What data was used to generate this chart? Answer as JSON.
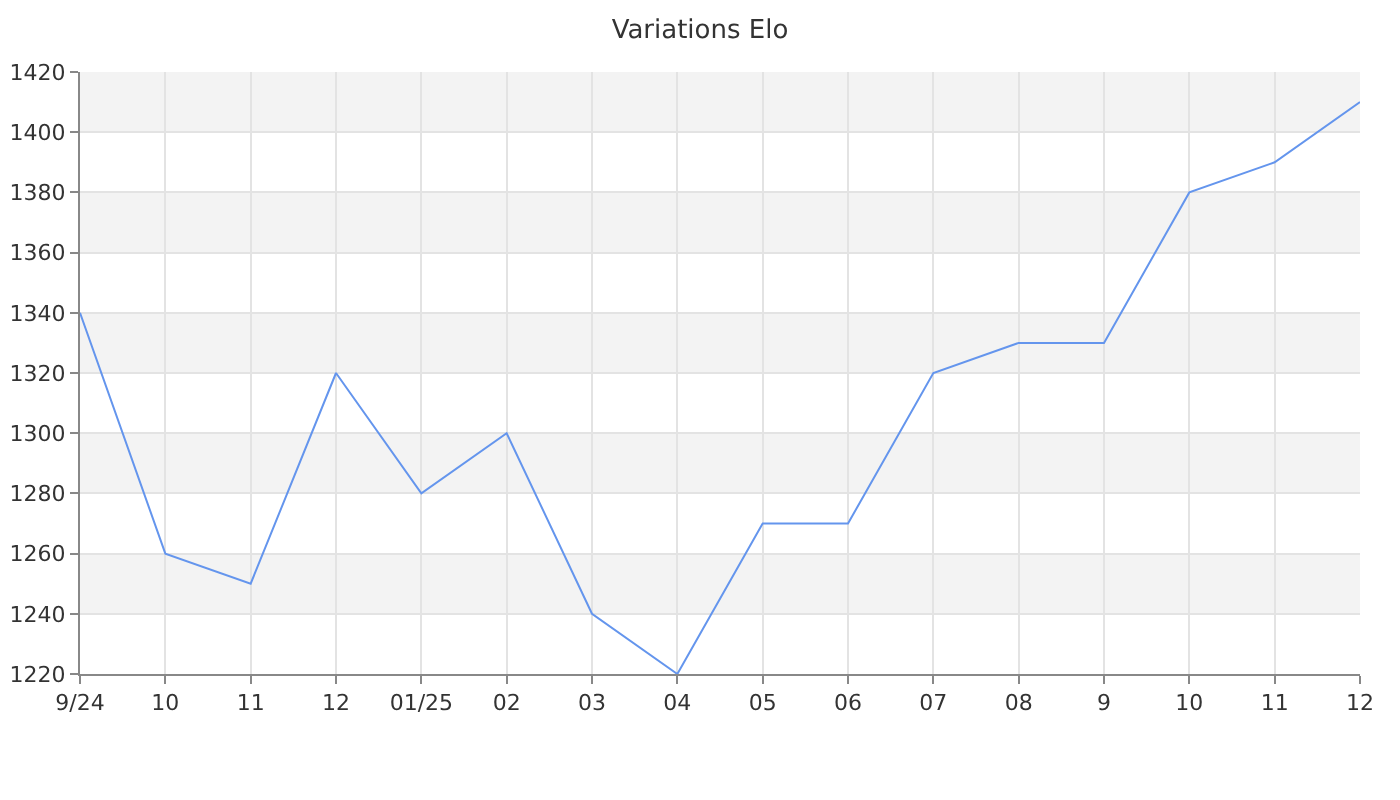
{
  "chart_data": {
    "type": "line",
    "title": "Variations Elo",
    "categories": [
      "9/24",
      "10",
      "11",
      "12",
      "01/25",
      "02",
      "03",
      "04",
      "05",
      "06",
      "07",
      "08",
      "9",
      "10",
      "11",
      "12"
    ],
    "series": [
      {
        "color": "#6495ed",
        "values": [
          1340,
          1260,
          1250,
          1320,
          1280,
          1300,
          1240,
          1220,
          1270,
          1270,
          1320,
          1330,
          1330,
          1380,
          1390,
          1410
        ]
      }
    ],
    "ylim": [
      1220,
      1420
    ],
    "yticks": [
      1220,
      1240,
      1260,
      1280,
      1300,
      1320,
      1340,
      1360,
      1380,
      1400,
      1420
    ],
    "grid": true,
    "marker": "none",
    "line_style": "solid"
  }
}
